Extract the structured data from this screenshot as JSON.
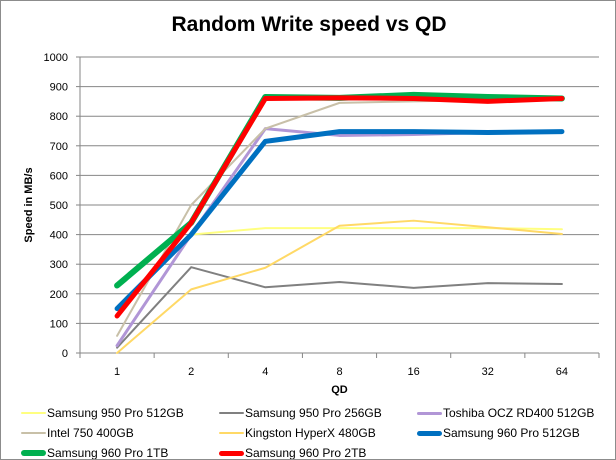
{
  "chart_data": {
    "type": "line",
    "title": "Random Write speed vs QD",
    "xlabel": "QD",
    "ylabel": "Speed in MB/s",
    "categories": [
      "1",
      "2",
      "4",
      "8",
      "16",
      "32",
      "64"
    ],
    "ylim": [
      0,
      1000
    ],
    "yticks": [
      "0",
      "100",
      "200",
      "300",
      "400",
      "500",
      "600",
      "700",
      "800",
      "900",
      "1000"
    ],
    "grid": true,
    "legend_position": "bottom",
    "series": [
      {
        "name": "Samsung 950 Pro 512GB",
        "color": "#ffff80",
        "width": 2,
        "values": [
          25,
          400,
          422,
          422,
          422,
          422,
          418
        ]
      },
      {
        "name": "Samsung 950 Pro 256GB",
        "color": "#808080",
        "width": 2,
        "values": [
          18,
          290,
          222,
          240,
          220,
          236,
          233
        ]
      },
      {
        "name": "Toshiba OCZ RD400 512GB",
        "color": "#b196d6",
        "width": 3,
        "values": [
          25,
          400,
          758,
          735,
          738,
          745,
          748
        ]
      },
      {
        "name": "Intel 750 400GB",
        "color": "#c8c0a8",
        "width": 2,
        "values": [
          58,
          500,
          758,
          845,
          850,
          855,
          858
        ]
      },
      {
        "name": "Kingston HyperX 480GB",
        "color": "#ffd966",
        "width": 2,
        "values": [
          0,
          215,
          288,
          430,
          447,
          425,
          402
        ]
      },
      {
        "name": "Samsung 960 Pro 512GB",
        "color": "#0070c0",
        "width": 5,
        "values": [
          150,
          400,
          715,
          748,
          748,
          745,
          748
        ]
      },
      {
        "name": "Samsung 960 Pro 1TB",
        "color": "#00b050",
        "width": 6,
        "values": [
          228,
          440,
          865,
          862,
          872,
          865,
          860
        ]
      },
      {
        "name": "Samsung 960 Pro 2TB",
        "color": "#ff0000",
        "width": 5,
        "values": [
          125,
          440,
          860,
          862,
          860,
          850,
          860
        ]
      }
    ]
  }
}
